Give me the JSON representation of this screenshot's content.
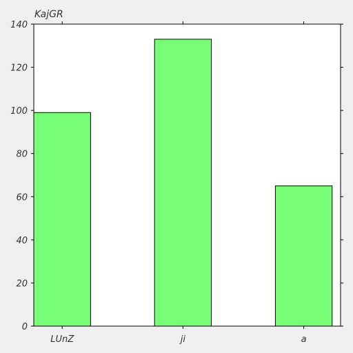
{
  "chart_data": {
    "type": "bar",
    "title": "KajGR",
    "xlabel": "",
    "ylabel": "",
    "categories": [
      "LUnZ",
      "ji",
      "a"
    ],
    "values": [
      99,
      133,
      65
    ],
    "ylim": [
      0,
      140
    ],
    "yticks": [
      0,
      20,
      40,
      60,
      80,
      100,
      120,
      140
    ],
    "grid": false,
    "bar_color": "#77ff77",
    "bar_edge_color": "#000000",
    "background_color": "#f0f0f0",
    "plot_background_color": "#ffffff"
  }
}
